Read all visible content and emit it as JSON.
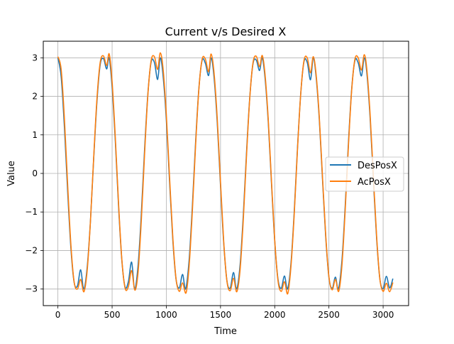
{
  "chart_data": {
    "type": "line",
    "title": "Current v/s Desired X",
    "xlabel": "Time",
    "ylabel": "Value",
    "xlim": [
      -135,
      3235
    ],
    "ylim": [
      -3.43,
      3.43
    ],
    "xticks": [
      0,
      500,
      1000,
      1500,
      2000,
      2500,
      3000
    ],
    "xtick_labels": [
      "0",
      "500",
      "1000",
      "1500",
      "2000",
      "2500",
      "3000"
    ],
    "yticks": [
      -3,
      -2,
      -1,
      0,
      1,
      2,
      3
    ],
    "ytick_labels": [
      "−3",
      "−2",
      "−1",
      "0",
      "1",
      "2",
      "3"
    ],
    "grid": true,
    "legend_position": "center-right",
    "series": [
      {
        "name": "DesPosX",
        "color": "#1f77b4",
        "x": [
          0,
          30,
          60,
          90,
          120,
          150,
          180,
          210,
          238,
          270,
          300,
          330,
          360,
          390,
          420,
          450,
          472,
          500,
          530,
          560,
          590,
          620,
          650,
          680,
          708,
          740,
          770,
          800,
          830,
          860,
          890,
          920,
          944,
          970,
          1000,
          1030,
          1060,
          1090,
          1120,
          1150,
          1178,
          1210,
          1240,
          1270,
          1300,
          1330,
          1360,
          1390,
          1413,
          1440,
          1470,
          1500,
          1530,
          1560,
          1590,
          1620,
          1648,
          1680,
          1710,
          1740,
          1770,
          1800,
          1830,
          1860,
          1884,
          1910,
          1940,
          1970,
          2000,
          2030,
          2060,
          2090,
          2118,
          2150,
          2180,
          2210,
          2240,
          2270,
          2300,
          2330,
          2355,
          2380,
          2410,
          2440,
          2470,
          2500,
          2530,
          2560,
          2587,
          2620,
          2650,
          2680,
          2710,
          2740,
          2770,
          2800,
          2826,
          2850,
          2880,
          2910,
          2940,
          2970,
          3000,
          3030,
          3060,
          3090
        ],
        "y": [
          3.0,
          2.51,
          1.2,
          -0.47,
          -1.95,
          -2.83,
          -2.92,
          -2.5,
          -3.0,
          -2.44,
          -1.24,
          0.38,
          1.86,
          2.82,
          2.98,
          2.71,
          3.0,
          2.24,
          0.82,
          -0.88,
          -2.26,
          -2.95,
          -2.81,
          -2.3,
          -3.0,
          -2.37,
          -1.02,
          0.65,
          2.07,
          2.89,
          2.88,
          2.44,
          3.0,
          2.54,
          1.4,
          -0.21,
          -1.73,
          -2.75,
          -2.97,
          -2.62,
          -3.0,
          -2.26,
          -0.86,
          0.8,
          2.19,
          2.93,
          2.86,
          2.54,
          3.0,
          2.5,
          1.31,
          -0.32,
          -1.83,
          -2.8,
          -2.97,
          -2.57,
          -3.0,
          -2.39,
          -1.09,
          0.55,
          1.98,
          2.85,
          2.94,
          2.67,
          3.0,
          2.5,
          1.35,
          -0.25,
          -1.75,
          -2.74,
          -2.98,
          -2.66,
          -3.0,
          -2.33,
          -0.99,
          0.66,
          2.07,
          2.9,
          2.88,
          2.43,
          3.0,
          2.56,
          1.46,
          -0.11,
          -1.63,
          -2.7,
          -2.98,
          -2.69,
          -3.0,
          -2.26,
          -0.86,
          0.8,
          2.19,
          2.93,
          2.87,
          2.53,
          3.0,
          2.6,
          1.44,
          -0.16,
          -1.69,
          -2.74,
          -2.99,
          -2.67,
          -2.97,
          -2.73
        ]
      },
      {
        "name": "AcPosX",
        "color": "#ff7f0e",
        "x": [
          0,
          30,
          60,
          90,
          120,
          150,
          180,
          210,
          240,
          270,
          300,
          330,
          360,
          390,
          420,
          450,
          473,
          500,
          530,
          560,
          590,
          620,
          650,
          680,
          710,
          740,
          770,
          800,
          830,
          860,
          890,
          920,
          944,
          970,
          1000,
          1030,
          1060,
          1090,
          1120,
          1150,
          1182,
          1210,
          1240,
          1270,
          1300,
          1330,
          1360,
          1390,
          1413,
          1440,
          1470,
          1500,
          1530,
          1560,
          1590,
          1620,
          1650,
          1680,
          1710,
          1740,
          1770,
          1800,
          1830,
          1860,
          1885,
          1910,
          1940,
          1970,
          2000,
          2030,
          2060,
          2090,
          2120,
          2150,
          2180,
          2210,
          2240,
          2270,
          2300,
          2330,
          2355,
          2380,
          2410,
          2440,
          2470,
          2500,
          2530,
          2560,
          2590,
          2620,
          2650,
          2680,
          2710,
          2740,
          2770,
          2800,
          2826,
          2850,
          2880,
          2910,
          2940,
          2970,
          3000,
          3030,
          3060,
          3090
        ],
        "y": [
          3.03,
          2.7,
          1.42,
          -0.3,
          -1.86,
          -2.82,
          -3.0,
          -2.75,
          -3.07,
          -2.52,
          -1.25,
          0.41,
          1.93,
          2.88,
          3.05,
          2.8,
          3.1,
          2.38,
          0.91,
          -0.81,
          -2.24,
          -2.98,
          -2.94,
          -2.52,
          -3.03,
          -2.55,
          -1.19,
          0.53,
          2.04,
          2.93,
          3.03,
          2.7,
          3.13,
          2.72,
          1.53,
          -0.1,
          -1.66,
          -2.74,
          -3.06,
          -2.84,
          -3.1,
          -2.42,
          -0.99,
          0.72,
          2.17,
          2.96,
          2.97,
          2.64,
          3.1,
          2.62,
          1.42,
          -0.23,
          -1.79,
          -2.81,
          -3.04,
          -2.72,
          -3.07,
          -2.52,
          -1.21,
          0.47,
          1.96,
          2.88,
          3.04,
          2.77,
          3.06,
          2.59,
          1.42,
          -0.19,
          -1.73,
          -2.78,
          -3.06,
          -2.81,
          -3.12,
          -2.41,
          -1.06,
          0.62,
          2.07,
          2.93,
          3.0,
          2.61,
          3.03,
          2.62,
          1.52,
          -0.05,
          -1.58,
          -2.68,
          -3.02,
          -2.75,
          -3.06,
          -2.39,
          -0.96,
          0.72,
          2.16,
          2.97,
          3.0,
          2.68,
          3.08,
          2.69,
          1.53,
          -0.07,
          -1.63,
          -2.74,
          -3.06,
          -2.85,
          -3.07,
          -2.83
        ]
      }
    ]
  }
}
